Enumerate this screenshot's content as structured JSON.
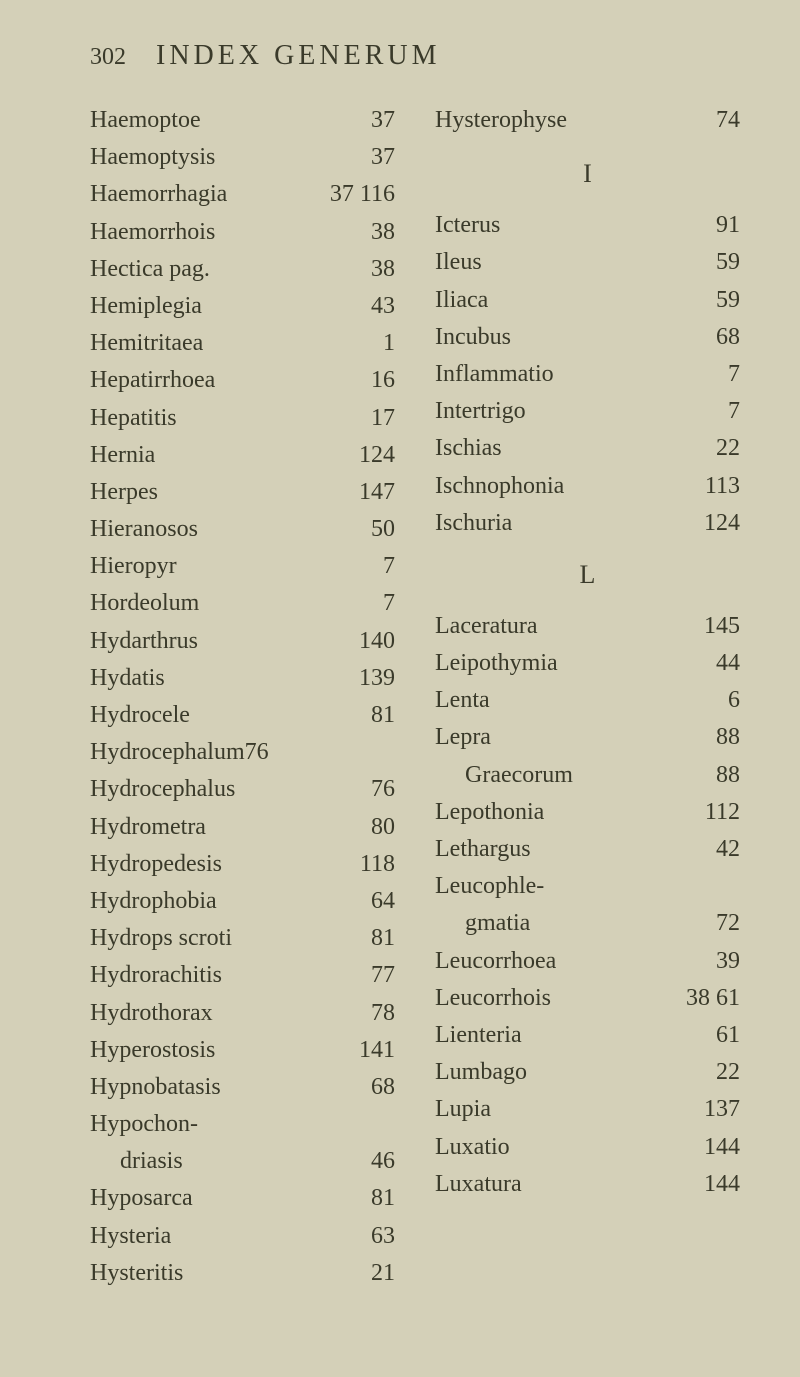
{
  "pageNumber": "302",
  "title": "INDEX GENERUM",
  "rightTop": {
    "term": "Hysterophyse",
    "num": "74"
  },
  "sectionI": "I",
  "sectionL": "L",
  "leftCol": [
    {
      "term": "Haemoptoe",
      "num": "37"
    },
    {
      "term": "Haemoptysis",
      "num": "37"
    },
    {
      "term": "Haemorrhagia",
      "num": "37  116"
    },
    {
      "term": "Haemorrhois",
      "num": "38"
    },
    {
      "term": "Hectica pag.",
      "num": "38"
    },
    {
      "term": "Hemiplegia",
      "num": "43"
    },
    {
      "term": "Hemitritaea",
      "num": "1"
    },
    {
      "term": "Hepatirrhoea",
      "num": "16"
    },
    {
      "term": "Hepatitis",
      "num": "17"
    },
    {
      "term": "Hernia",
      "num": "124"
    },
    {
      "term": "Herpes",
      "num": "147"
    },
    {
      "term": "Hieranosos",
      "num": "50"
    },
    {
      "term": "Hieropyr",
      "num": "7"
    },
    {
      "term": "Hordeolum",
      "num": "7"
    },
    {
      "term": "Hydarthrus",
      "num": "140"
    },
    {
      "term": "Hydatis",
      "num": "139"
    },
    {
      "term": "Hydrocele",
      "num": "81"
    },
    {
      "term": "Hydrocephalum76",
      "num": ""
    },
    {
      "term": "Hydrocephalus",
      "num": "76"
    },
    {
      "term": "Hydrometra",
      "num": "80"
    },
    {
      "term": "Hydropedesis",
      "num": "118"
    },
    {
      "term": "Hydrophobia",
      "num": "64"
    },
    {
      "term": "Hydrops scroti",
      "num": "81"
    },
    {
      "term": "Hydrorachitis",
      "num": "77"
    },
    {
      "term": "Hydrothorax",
      "num": "78"
    },
    {
      "term": "Hyperostosis",
      "num": "141"
    },
    {
      "term": "Hypnobatasis",
      "num": "68"
    },
    {
      "term": "Hypochon-",
      "num": ""
    },
    {
      "term": "driasis",
      "num": "46",
      "indent": true
    },
    {
      "term": "Hyposarca",
      "num": "81"
    },
    {
      "term": "Hysteria",
      "num": "63"
    },
    {
      "term": "Hysteritis",
      "num": "21"
    }
  ],
  "rightColI": [
    {
      "term": "Icterus",
      "num": "91"
    },
    {
      "term": "Ileus",
      "num": "59"
    },
    {
      "term": "Iliaca",
      "num": "59"
    },
    {
      "term": "Incubus",
      "num": "68"
    },
    {
      "term": "Inflammatio",
      "num": "7"
    },
    {
      "term": "Intertrigo",
      "num": "7"
    },
    {
      "term": "Ischias",
      "num": "22"
    },
    {
      "term": "Ischnophonia",
      "num": "113"
    },
    {
      "term": "Ischuria",
      "num": "124"
    }
  ],
  "rightColL": [
    {
      "term": "Laceratura",
      "num": "145"
    },
    {
      "term": "Leipothymia",
      "num": "44"
    },
    {
      "term": "Lenta",
      "num": "6"
    },
    {
      "term": "Lepra",
      "num": "88"
    },
    {
      "term": "Graecorum",
      "num": "88",
      "indent": true
    },
    {
      "term": "Lepothonia",
      "num": "112"
    },
    {
      "term": "Lethargus",
      "num": "42"
    },
    {
      "term": "Leucophle-",
      "num": ""
    },
    {
      "term": "gmatia",
      "num": "72",
      "indent": true
    },
    {
      "term": "Leucorrhoea",
      "num": "39"
    },
    {
      "term": "Leucorrhois",
      "num": "38  61"
    },
    {
      "term": "Lienteria",
      "num": "61"
    },
    {
      "term": "Lumbago",
      "num": "22"
    },
    {
      "term": "Lupia",
      "num": "137"
    },
    {
      "term": "Luxatio",
      "num": "144"
    },
    {
      "term": "Luxatura",
      "num": "144"
    }
  ]
}
